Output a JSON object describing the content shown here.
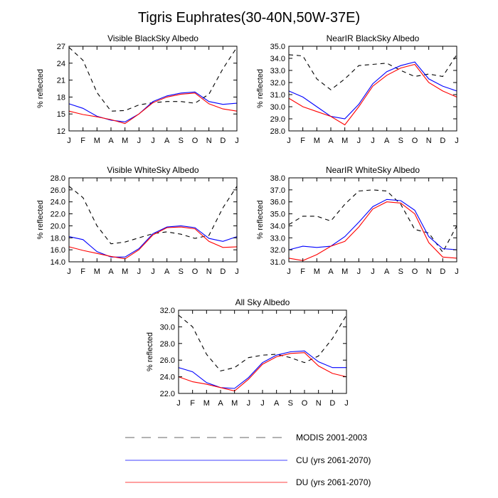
{
  "figure": {
    "title": "Tigris Euphrates(30-40N,50W-37E)"
  },
  "legend": [
    {
      "label": "MODIS 2001-2003",
      "color": "#000000",
      "dash": true
    },
    {
      "label": "CU (yrs 2061-2070)",
      "color": "#0000ff",
      "dash": false
    },
    {
      "label": "DU (yrs 2061-2070)",
      "color": "#ff0000",
      "dash": false
    }
  ],
  "chart_data": [
    {
      "type": "line",
      "title": "Visible BlackSky Albedo",
      "ylabel": "% reflected",
      "categories": [
        "J",
        "F",
        "M",
        "A",
        "M",
        "J",
        "J",
        "A",
        "S",
        "O",
        "N",
        "D",
        "J"
      ],
      "ylim": [
        12,
        27
      ],
      "yticks": [
        "12",
        "15",
        "18",
        "21",
        "24",
        "27"
      ],
      "series": [
        {
          "name": "MODIS 2001-2003",
          "color": "#000000",
          "dash": true,
          "values": [
            26.8,
            24.5,
            18.8,
            15.5,
            15.6,
            16.6,
            17.0,
            17.2,
            17.2,
            16.9,
            18.5,
            23.0,
            26.8
          ]
        },
        {
          "name": "CU (yrs 2061-2070)",
          "color": "#0000ff",
          "dash": false,
          "values": [
            16.8,
            16.0,
            14.6,
            13.9,
            13.6,
            15.0,
            17.2,
            18.2,
            18.7,
            18.9,
            17.2,
            16.7,
            16.9
          ]
        },
        {
          "name": "DU (yrs 2061-2070)",
          "color": "#ff0000",
          "dash": false,
          "values": [
            15.5,
            14.9,
            14.5,
            14.0,
            13.3,
            15.0,
            17.0,
            18.0,
            18.5,
            18.7,
            16.8,
            15.9,
            15.5
          ]
        }
      ]
    },
    {
      "type": "line",
      "title": "NearIR BlackSky Albedo",
      "ylabel": "% reflected",
      "categories": [
        "J",
        "F",
        "M",
        "A",
        "M",
        "J",
        "J",
        "A",
        "S",
        "O",
        "N",
        "D",
        "J"
      ],
      "ylim": [
        28,
        35
      ],
      "yticks": [
        "28.0",
        "29.0",
        "30.0",
        "31.0",
        "32.0",
        "33.0",
        "34.0",
        "35.0"
      ],
      "series": [
        {
          "name": "MODIS 2001-2003",
          "color": "#000000",
          "dash": true,
          "values": [
            34.3,
            34.2,
            32.3,
            31.4,
            32.3,
            33.4,
            33.5,
            33.6,
            33.0,
            32.5,
            32.7,
            32.5,
            34.3
          ]
        },
        {
          "name": "CU (yrs 2061-2070)",
          "color": "#0000ff",
          "dash": false,
          "values": [
            31.3,
            30.8,
            30.0,
            29.2,
            29.0,
            30.2,
            31.9,
            32.9,
            33.4,
            33.7,
            32.3,
            31.7,
            31.3
          ]
        },
        {
          "name": "DU (yrs 2061-2070)",
          "color": "#ff0000",
          "dash": false,
          "values": [
            30.7,
            30.0,
            29.6,
            29.2,
            28.5,
            30.0,
            31.7,
            32.6,
            33.2,
            33.5,
            32.0,
            31.3,
            30.8
          ]
        }
      ]
    },
    {
      "type": "line",
      "title": "Visible WhiteSky Albedo",
      "ylabel": "% reflected",
      "categories": [
        "J",
        "F",
        "M",
        "A",
        "M",
        "J",
        "J",
        "A",
        "S",
        "O",
        "N",
        "D",
        "J"
      ],
      "ylim": [
        14,
        28
      ],
      "yticks": [
        "14.0",
        "16.0",
        "18.0",
        "20.0",
        "22.0",
        "24.0",
        "26.0",
        "28.0"
      ],
      "series": [
        {
          "name": "MODIS 2001-2003",
          "color": "#000000",
          "dash": true,
          "values": [
            26.6,
            24.7,
            20.0,
            17.0,
            17.3,
            18.0,
            18.7,
            19.0,
            18.6,
            17.9,
            18.4,
            23.0,
            26.6
          ]
        },
        {
          "name": "CU (yrs 2061-2070)",
          "color": "#0000ff",
          "dash": false,
          "values": [
            18.2,
            17.7,
            15.7,
            14.8,
            14.8,
            16.2,
            18.7,
            19.8,
            20.0,
            19.7,
            17.9,
            17.4,
            18.2
          ]
        },
        {
          "name": "DU (yrs 2061-2070)",
          "color": "#ff0000",
          "dash": false,
          "values": [
            16.5,
            15.9,
            15.4,
            14.9,
            14.5,
            16.0,
            18.5,
            19.7,
            19.8,
            19.5,
            17.4,
            16.4,
            16.5
          ]
        }
      ]
    },
    {
      "type": "line",
      "title": "NearIR WhiteSky Albedo",
      "ylabel": "% reflected",
      "categories": [
        "J",
        "F",
        "M",
        "A",
        "M",
        "J",
        "J",
        "A",
        "S",
        "O",
        "N",
        "D",
        "J"
      ],
      "ylim": [
        31,
        38
      ],
      "yticks": [
        "31.0",
        "32.0",
        "33.0",
        "34.0",
        "35.0",
        "36.0",
        "37.0",
        "38.0"
      ],
      "series": [
        {
          "name": "MODIS 2001-2003",
          "color": "#000000",
          "dash": true,
          "values": [
            34.1,
            34.8,
            34.8,
            34.4,
            35.8,
            36.9,
            37.0,
            36.9,
            35.8,
            33.7,
            33.4,
            31.8,
            34.0
          ]
        },
        {
          "name": "CU (yrs 2061-2070)",
          "color": "#0000ff",
          "dash": false,
          "values": [
            32.0,
            32.3,
            32.2,
            32.3,
            33.1,
            34.3,
            35.6,
            36.2,
            36.1,
            35.3,
            33.1,
            32.1,
            32.0
          ]
        },
        {
          "name": "DU (yrs 2061-2070)",
          "color": "#ff0000",
          "dash": false,
          "values": [
            31.3,
            31.1,
            31.6,
            32.3,
            32.7,
            33.9,
            35.4,
            36.0,
            35.9,
            35.0,
            32.6,
            31.4,
            31.3
          ]
        }
      ]
    },
    {
      "type": "line",
      "title": "All Sky Albedo",
      "ylabel": "% reflected",
      "categories": [
        "J",
        "F",
        "M",
        "A",
        "M",
        "J",
        "J",
        "A",
        "S",
        "O",
        "N",
        "D",
        "J"
      ],
      "ylim": [
        22,
        32
      ],
      "yticks": [
        "22.0",
        "24.0",
        "26.0",
        "28.0",
        "30.0",
        "32.0"
      ],
      "series": [
        {
          "name": "MODIS 2001-2003",
          "color": "#000000",
          "dash": true,
          "values": [
            31.4,
            30.0,
            26.7,
            24.7,
            25.1,
            26.3,
            26.6,
            26.7,
            26.3,
            25.7,
            26.5,
            28.6,
            31.4
          ]
        },
        {
          "name": "CU (yrs 2061-2070)",
          "color": "#0000ff",
          "dash": false,
          "values": [
            25.1,
            24.6,
            23.3,
            22.7,
            22.6,
            23.9,
            25.7,
            26.6,
            27.0,
            27.1,
            25.8,
            25.1,
            25.1
          ]
        },
        {
          "name": "DU (yrs 2061-2070)",
          "color": "#ff0000",
          "dash": false,
          "values": [
            24.0,
            23.4,
            23.1,
            22.7,
            22.3,
            23.7,
            25.5,
            26.4,
            26.8,
            26.9,
            25.3,
            24.4,
            24.0
          ]
        }
      ]
    }
  ]
}
